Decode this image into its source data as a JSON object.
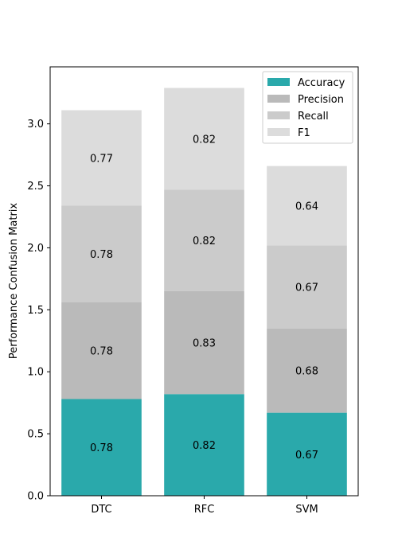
{
  "chart_data": {
    "type": "bar",
    "stacked": true,
    "title": "",
    "xlabel": "",
    "ylabel": "Performance Confusion Matrix",
    "ylim": [
      0,
      3.46
    ],
    "yticks": [
      "0.0",
      "0.5",
      "1.0",
      "1.5",
      "2.0",
      "2.5",
      "3.0"
    ],
    "categories": [
      "DTC",
      "RFC",
      "SVM"
    ],
    "series": [
      {
        "name": "Accuracy",
        "color": "#2aa9ab",
        "values": [
          0.78,
          0.82,
          0.67
        ],
        "labels": [
          "0.78",
          "0.82",
          "0.67"
        ]
      },
      {
        "name": "Precision",
        "color": "#bababa",
        "values": [
          0.78,
          0.83,
          0.68
        ],
        "labels": [
          "0.78",
          "0.83",
          "0.68"
        ]
      },
      {
        "name": "Recall",
        "color": "#cbcbcb",
        "values": [
          0.78,
          0.82,
          0.67
        ],
        "labels": [
          "0.78",
          "0.82",
          "0.67"
        ]
      },
      {
        "name": "F1",
        "color": "#dcdcdc",
        "values": [
          0.77,
          0.82,
          0.64
        ],
        "labels": [
          "0.77",
          "0.82",
          "0.64"
        ]
      }
    ],
    "legend": "top-right",
    "grid": false
  }
}
